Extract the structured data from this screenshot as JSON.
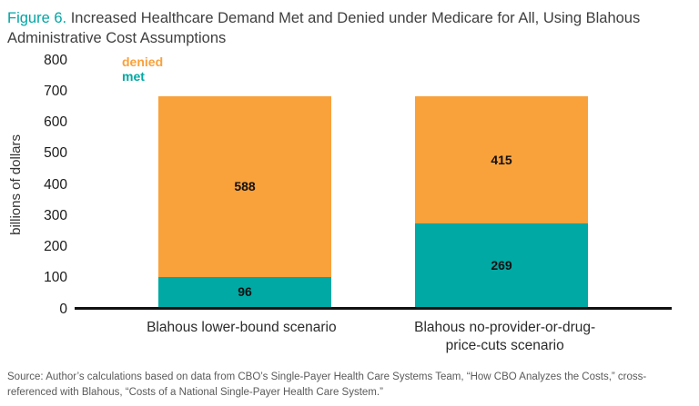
{
  "figure": {
    "label": "Figure 6.",
    "title": "Increased Healthcare Demand Met and Denied under Medicare for All, Using Blahous Administrative Cost Assumptions"
  },
  "chart_data": {
    "type": "bar",
    "stacked": true,
    "categories": [
      "Blahous lower-bound scenario",
      "Blahous no-provider-or-drug-price-cuts scenario"
    ],
    "series": [
      {
        "name": "met",
        "color": "#00a9a4",
        "values": [
          96,
          269
        ]
      },
      {
        "name": "denied",
        "color": "#f9a13b",
        "values": [
          588,
          415
        ]
      }
    ],
    "title": "Increased Healthcare Demand Met and Denied under Medicare for All, Using Blahous Administrative Cost Assumptions",
    "xlabel": "",
    "ylabel": "billions of dollars",
    "ylim": [
      0,
      800
    ],
    "yticks": [
      0,
      100,
      200,
      300,
      400,
      500,
      600,
      700,
      800
    ],
    "grid": false,
    "legend_position": "top-left-inside",
    "legend_order": [
      "denied",
      "met"
    ]
  },
  "source": "Source: Author’s calculations based on data from CBO’s Single-Payer Health Care Systems Team, “How CBO Analyzes the Costs,” cross-referenced with Blahous, “Costs of a National Single-Payer Health Care System.”"
}
